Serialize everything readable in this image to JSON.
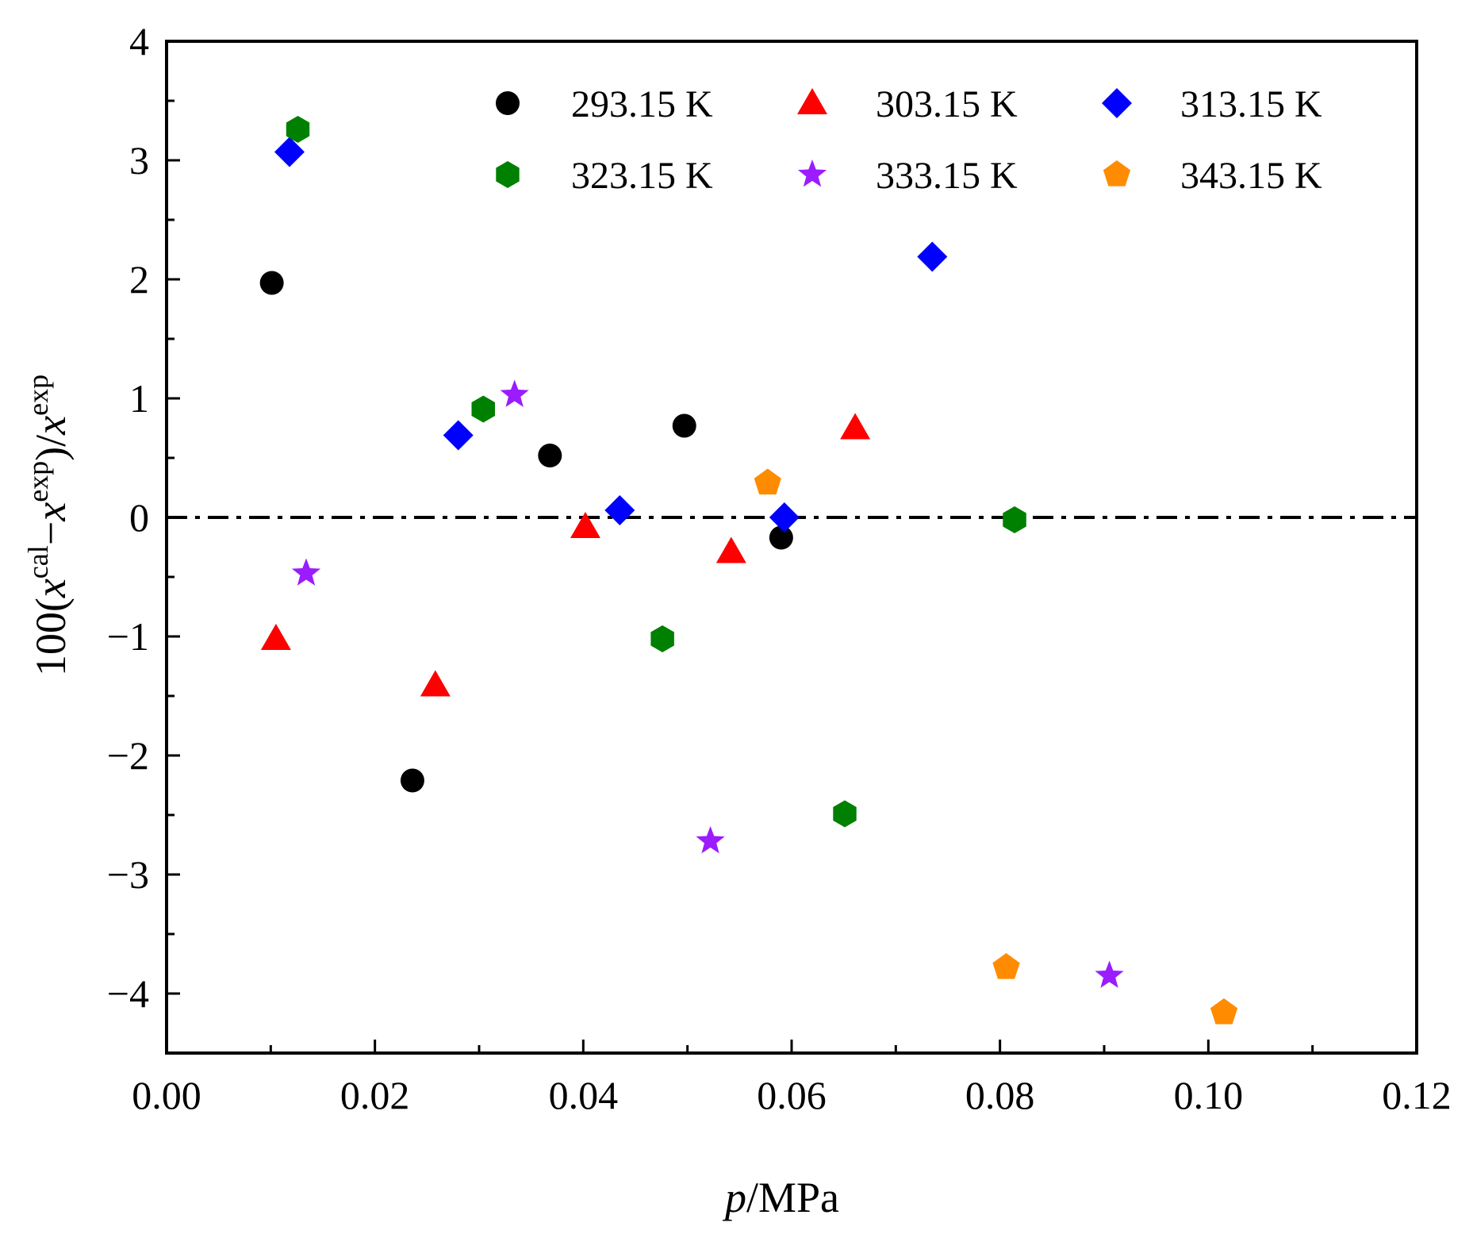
{
  "chart_data": {
    "type": "scatter",
    "xlabel_italic": "p",
    "xlabel_rest": "/MPa",
    "ylabel": {
      "prefix": "100(",
      "x1": "x",
      "sup1": "cal",
      "minus": "−",
      "x2": "x",
      "sup2": "exp",
      "mid": ")/",
      "x3": "x",
      "sup3": "exp"
    },
    "xlim": [
      0.0,
      0.12
    ],
    "ylim": [
      -4.5,
      4.0
    ],
    "xticks": [
      0.0,
      0.02,
      0.04,
      0.06,
      0.08,
      0.1,
      0.12
    ],
    "xtick_labels": [
      "0.00",
      "0.02",
      "0.04",
      "0.06",
      "0.08",
      "0.10",
      "0.12"
    ],
    "yticks": [
      -4,
      -3,
      -2,
      -1,
      0,
      1,
      2,
      3,
      4
    ],
    "ytick_labels": [
      "−4",
      "−3",
      "−2",
      "−1",
      "0",
      "1",
      "2",
      "3",
      "4"
    ],
    "reference_line": {
      "y": 0,
      "style": "dash-dot"
    },
    "legend_position": "top-right",
    "series": [
      {
        "name": "293.15 K",
        "marker": "circle",
        "color": "#000000",
        "points": [
          [
            0.0101,
            1.97
          ],
          [
            0.0236,
            -2.21
          ],
          [
            0.0368,
            0.52
          ],
          [
            0.0497,
            0.77
          ],
          [
            0.059,
            -0.17
          ]
        ]
      },
      {
        "name": "303.15 K",
        "marker": "triangle",
        "color": "#ff0000",
        "points": [
          [
            0.0105,
            -1.02
          ],
          [
            0.0258,
            -1.41
          ],
          [
            0.0402,
            -0.08
          ],
          [
            0.0542,
            -0.29
          ],
          [
            0.0661,
            0.75
          ]
        ]
      },
      {
        "name": "313.15 K",
        "marker": "diamond",
        "color": "#0000ff",
        "points": [
          [
            0.0118,
            3.07
          ],
          [
            0.028,
            0.69
          ],
          [
            0.0435,
            0.06
          ],
          [
            0.0593,
            0.0
          ],
          [
            0.0735,
            2.19
          ]
        ]
      },
      {
        "name": "323.15 K",
        "marker": "hexagon",
        "color": "#008000",
        "points": [
          [
            0.0126,
            3.26
          ],
          [
            0.0304,
            0.91
          ],
          [
            0.0476,
            -1.02
          ],
          [
            0.0651,
            -2.49
          ],
          [
            0.0814,
            -0.02
          ]
        ]
      },
      {
        "name": "333.15 K",
        "marker": "star",
        "color": "#9b1cff",
        "points": [
          [
            0.0134,
            -0.47
          ],
          [
            0.0334,
            1.03
          ],
          [
            0.0522,
            -2.72
          ],
          [
            0.0905,
            -3.85
          ]
        ]
      },
      {
        "name": "343.15 K",
        "marker": "pentagon",
        "color": "#ff8c00",
        "points": [
          [
            0.0577,
            0.29
          ],
          [
            0.0806,
            -3.78
          ],
          [
            0.1015,
            -4.16
          ]
        ]
      }
    ]
  }
}
